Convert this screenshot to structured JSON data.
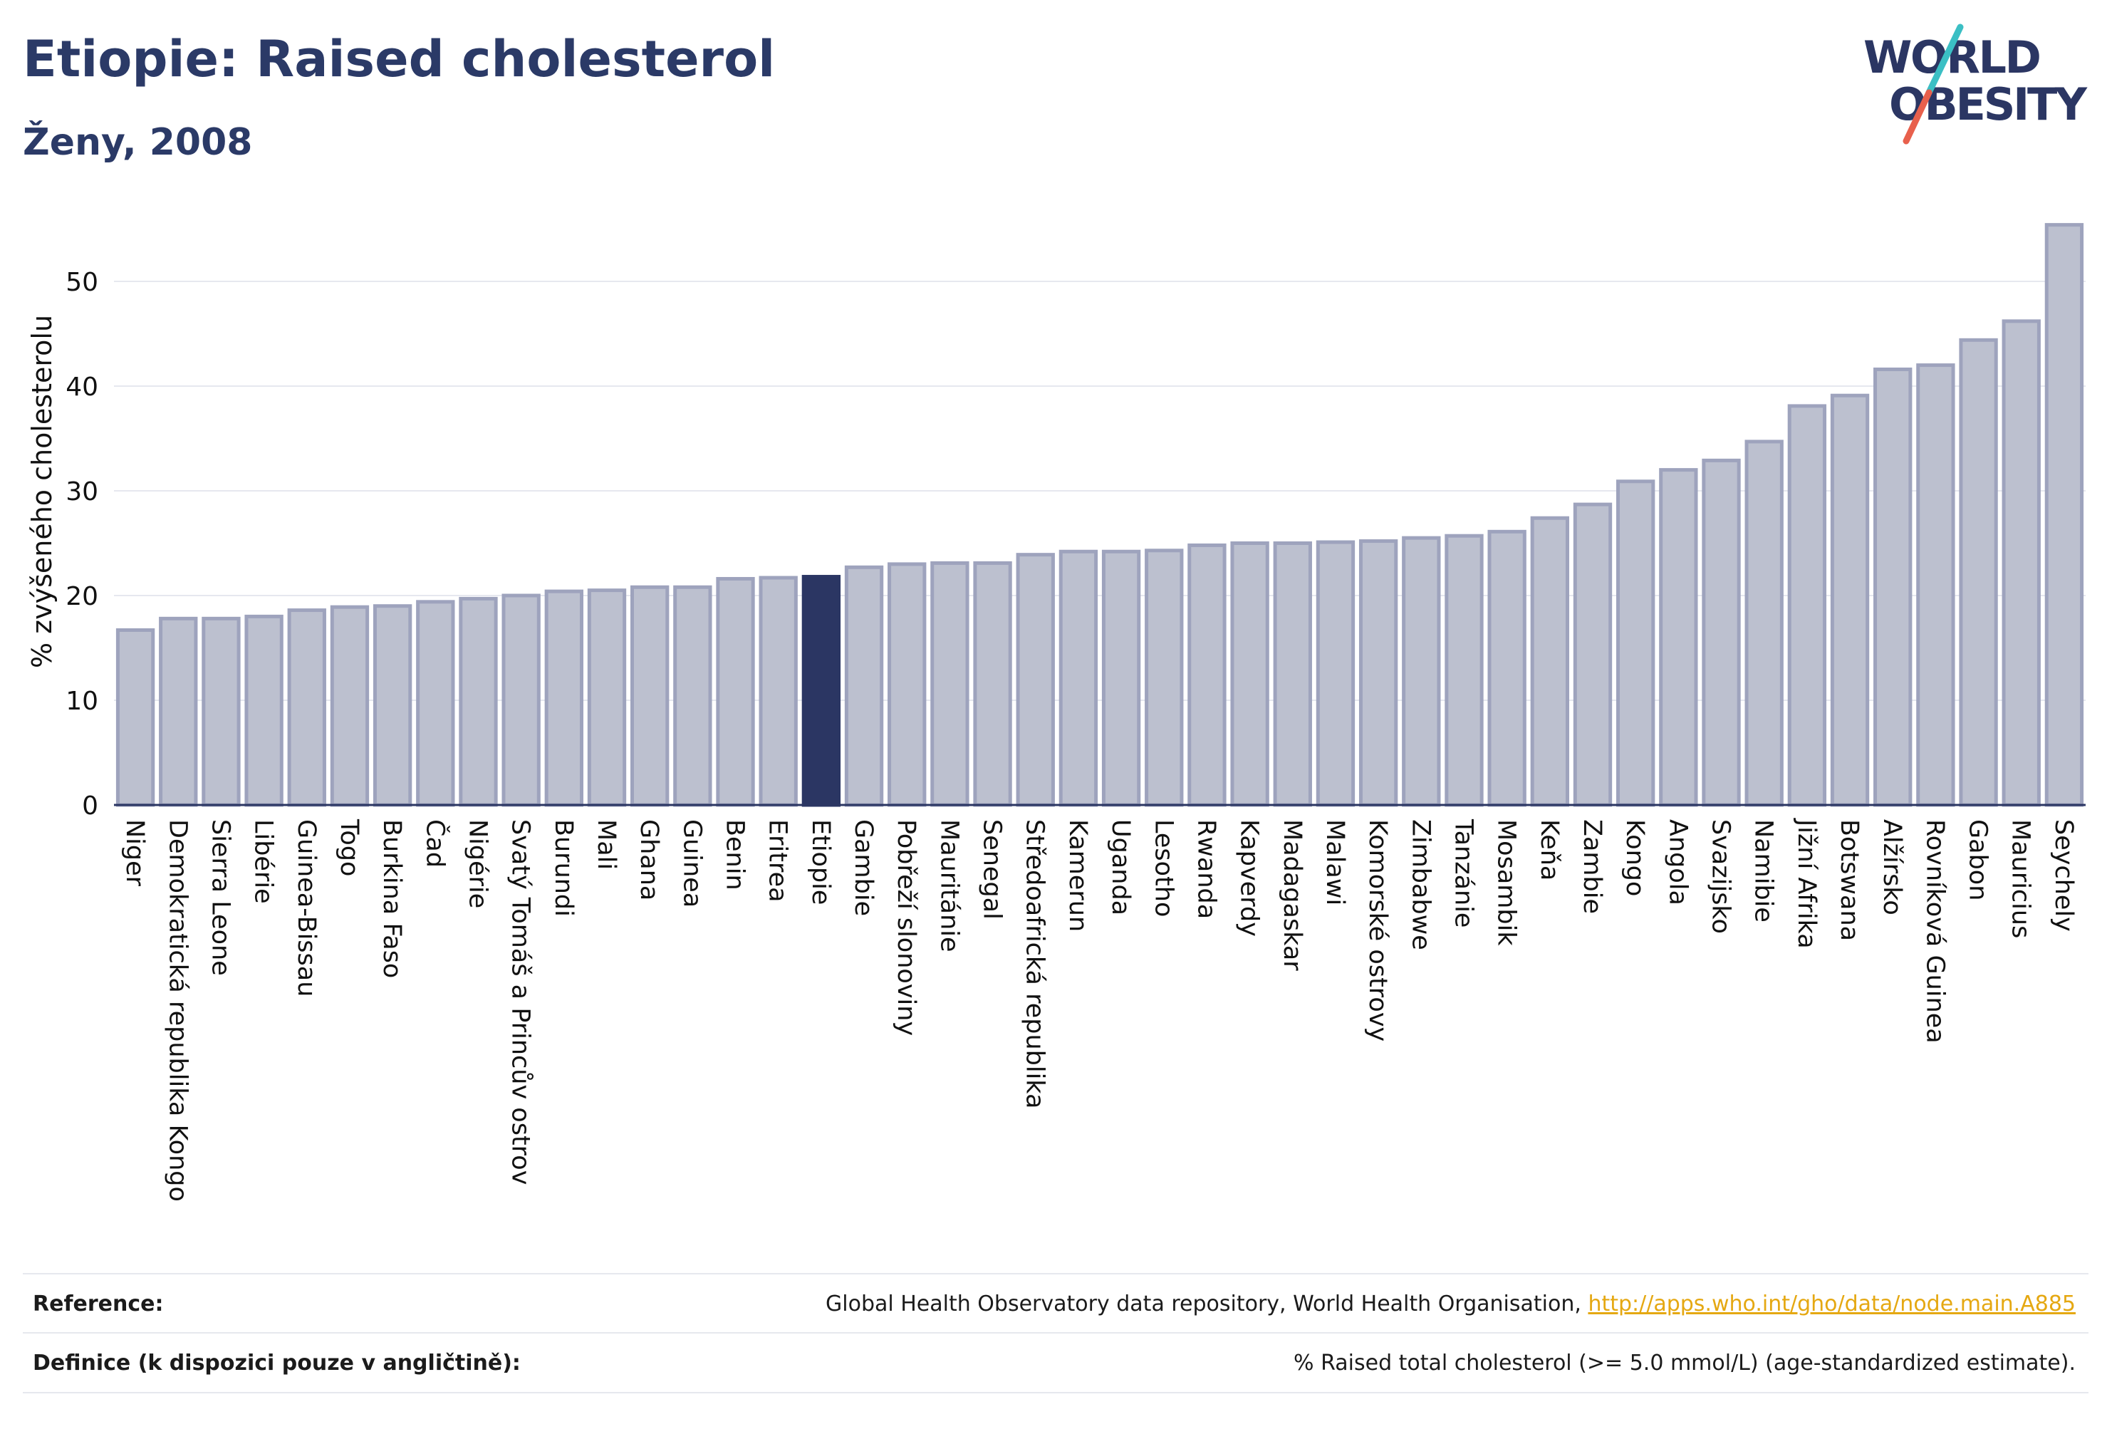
{
  "header": {
    "title": "Etiopie: Raised cholesterol",
    "subtitle": "Ženy, 2008"
  },
  "logo": {
    "line1": "WORLD",
    "line2": "OBESITY"
  },
  "chart_data": {
    "type": "bar",
    "title": "Etiopie: Raised cholesterol",
    "subtitle": "Ženy, 2008",
    "xlabel": "",
    "ylabel": "% zvýšeného cholesterolu",
    "ylim": [
      0,
      57
    ],
    "yticks": [
      0,
      10,
      20,
      30,
      40,
      50
    ],
    "grid": true,
    "highlight": "Etiopie",
    "colors": {
      "bar": "#bcc0cf",
      "bar_border": "#9ea3bd",
      "highlight": "#2b3663",
      "axis": "#2b3663",
      "grid": "#e6e8ef"
    },
    "categories": [
      "Niger",
      "Demokratická republika Kongo",
      "Sierra Leone",
      "Libérie",
      "Guinea-Bissau",
      "Togo",
      "Burkina Faso",
      "Čad",
      "Nigérie",
      "Svatý Tomáš a Princův ostrov",
      "Burundi",
      "Mali",
      "Ghana",
      "Guinea",
      "Benin",
      "Eritrea",
      "Etiopie",
      "Gambie",
      "Pobřeží slonoviny",
      "Mauritánie",
      "Senegal",
      "Středoafrická republika",
      "Kamerun",
      "Uganda",
      "Lesotho",
      "Rwanda",
      "Kapverdy",
      "Madagaskar",
      "Malawi",
      "Komorské ostrovy",
      "Zimbabwe",
      "Tanzánie",
      "Mosambik",
      "Keňa",
      "Zambie",
      "Kongo",
      "Angola",
      "Svazijsko",
      "Namibie",
      "Jižní Afrika",
      "Botswana",
      "Alžírsko",
      "Rovníková Guinea",
      "Gabon",
      "Mauricius",
      "Seychely"
    ],
    "values": [
      16.7,
      17.8,
      17.8,
      18.0,
      18.6,
      18.9,
      19.0,
      19.4,
      19.7,
      20.0,
      20.4,
      20.5,
      20.8,
      20.8,
      21.6,
      21.7,
      21.8,
      22.7,
      23.0,
      23.1,
      23.1,
      23.9,
      24.2,
      24.2,
      24.3,
      24.8,
      25.0,
      25.0,
      25.1,
      25.2,
      25.5,
      25.7,
      26.1,
      27.4,
      28.7,
      30.9,
      32.0,
      32.9,
      34.7,
      38.1,
      39.1,
      41.6,
      42.0,
      44.4,
      46.2,
      55.4
    ]
  },
  "footer": {
    "reference_label": "Reference:",
    "reference_text": "Global Health Observatory data repository, World Health Organisation, ",
    "reference_link": "http://apps.who.int/gho/data/node.main.A885",
    "definition_label": "Definice (k dispozici pouze v angličtině):",
    "definition_text": "% Raised total cholesterol (>= 5.0 mmol/L) (age-standardized estimate)."
  }
}
